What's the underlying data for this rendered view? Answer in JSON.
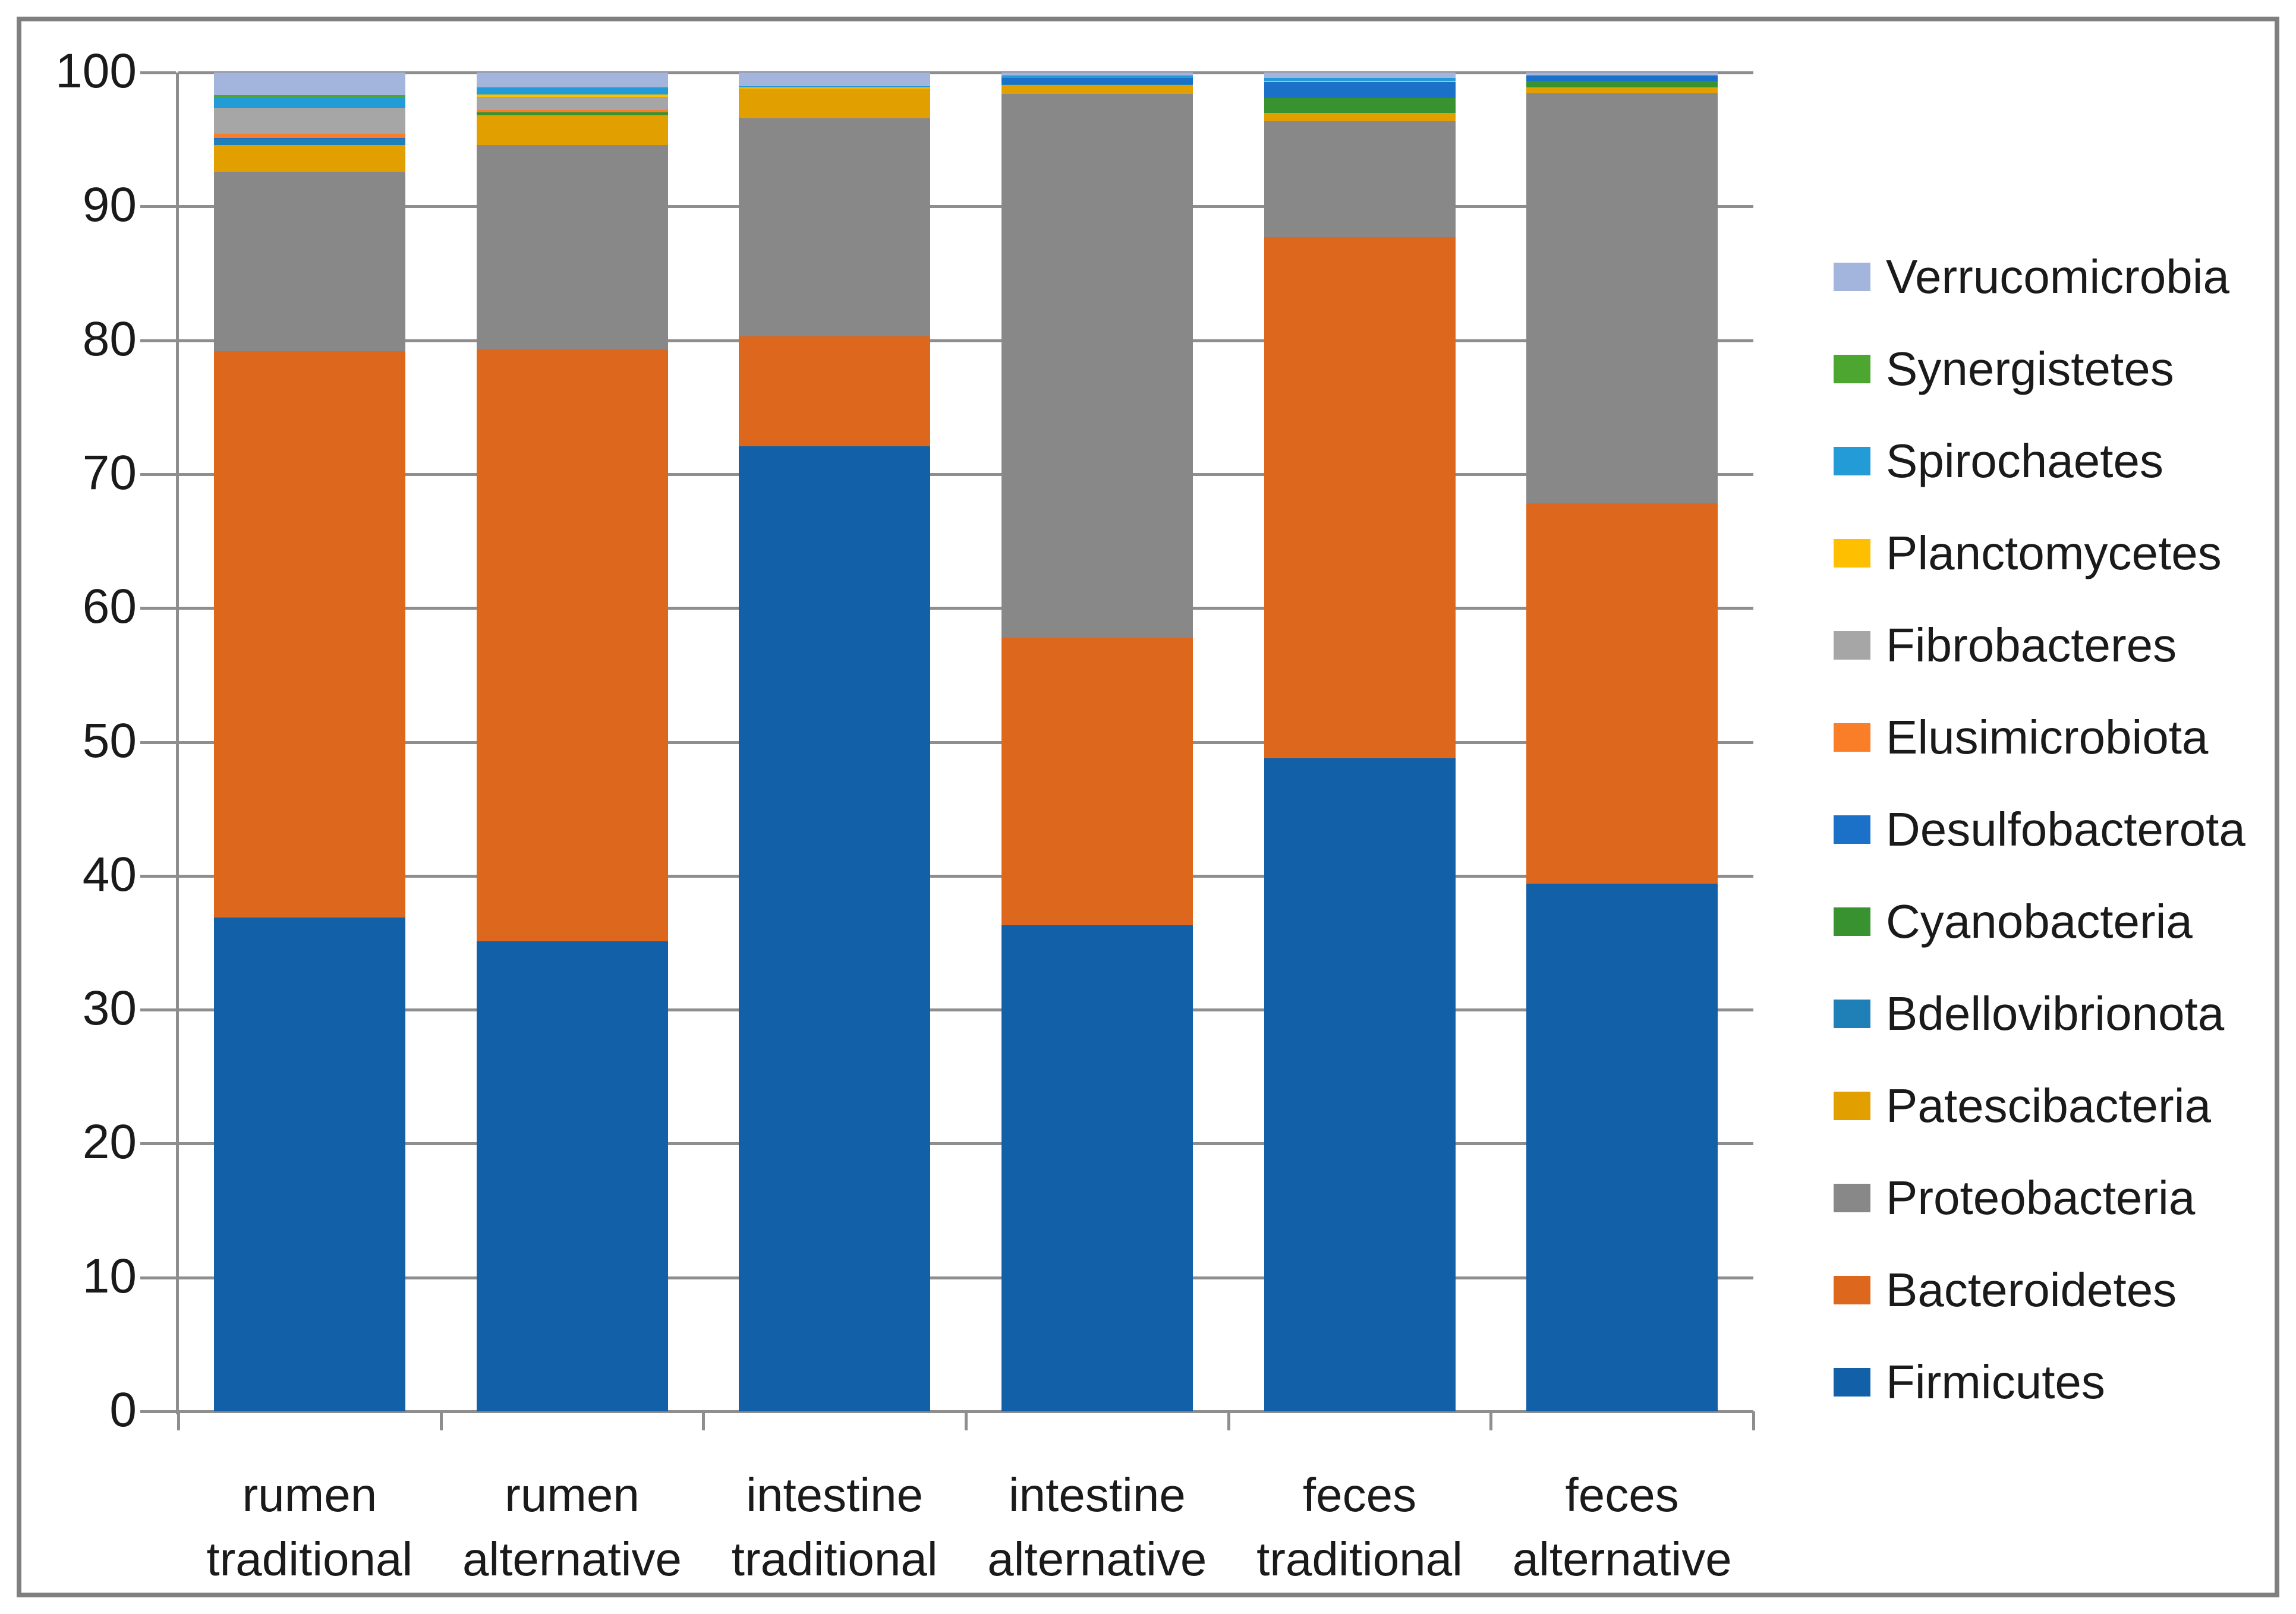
{
  "figure": {
    "background_color": "#FFFFFF",
    "border_color": "#7F7F7F",
    "grid_color": "#8E8E8E",
    "text_color": "#1A1A1A"
  },
  "chart_data": {
    "type": "bar",
    "stacked": true,
    "title": "",
    "xlabel": "",
    "ylabel": "",
    "ylim": [
      0,
      100
    ],
    "grid": true,
    "legend_position": "right",
    "yticks": [
      "0",
      "10",
      "20",
      "30",
      "40",
      "50",
      "60",
      "70",
      "80",
      "90",
      "100"
    ],
    "categories": [
      {
        "line1": "rumen",
        "line2": "traditional"
      },
      {
        "line1": "rumen",
        "line2": "alternative"
      },
      {
        "line1": "intestine",
        "line2": "traditional"
      },
      {
        "line1": "intestine",
        "line2": "alternative"
      },
      {
        "line1": "feces",
        "line2": "traditional"
      },
      {
        "line1": "feces",
        "line2": "alternative"
      }
    ],
    "stack_order_note": "series listed bottom-to-top; legend displays reverse order",
    "series": [
      {
        "name": "Firmicutes",
        "color": "#1160A8",
        "values": [
          36.9,
          35.1,
          72.1,
          36.3,
          48.8,
          39.4
        ]
      },
      {
        "name": "Bacteroidetes",
        "color": "#DC671D",
        "values": [
          42.3,
          44.2,
          8.2,
          21.5,
          38.9,
          28.4
        ]
      },
      {
        "name": "Proteobacteria",
        "color": "#888888",
        "values": [
          13.4,
          15.3,
          16.3,
          40.6,
          8.65,
          30.65
        ]
      },
      {
        "name": "Patescibacteria",
        "color": "#E2A000",
        "values": [
          2.0,
          2.2,
          2.2,
          0.65,
          0.65,
          0.45
        ]
      },
      {
        "name": "Bdellovibrionota",
        "color": "#1F80B8",
        "values": [
          0.45,
          0,
          0,
          0.1,
          0,
          0
        ]
      },
      {
        "name": "Cyanobacteria",
        "color": "#37922F",
        "values": [
          0,
          0.25,
          0,
          0,
          1.1,
          0.5
        ]
      },
      {
        "name": "Desulfobacterota",
        "color": "#1B71C8",
        "values": [
          0.05,
          0,
          0,
          0.45,
          1.2,
          0.4
        ]
      },
      {
        "name": "Elusimicrobiota",
        "color": "#F97E27",
        "values": [
          0.35,
          0.15,
          0,
          0,
          0,
          0
        ]
      },
      {
        "name": "Fibrobacteres",
        "color": "#A6A6A6",
        "values": [
          1.9,
          1.0,
          0,
          0,
          0,
          0
        ]
      },
      {
        "name": "Planctomycetes",
        "color": "#FEBF00",
        "values": [
          0,
          0.15,
          0.1,
          0,
          0.1,
          0
        ]
      },
      {
        "name": "Spirochaetes",
        "color": "#229BD7",
        "values": [
          0.8,
          0.5,
          0.1,
          0.2,
          0.2,
          0
        ]
      },
      {
        "name": "Synergistetes",
        "color": "#4CA62F",
        "values": [
          0.15,
          0.05,
          0,
          0,
          0,
          0
        ]
      },
      {
        "name": "Verrucomicrobia",
        "color": "#A3B4DD",
        "values": [
          1.7,
          1.1,
          1.0,
          0.2,
          0.4,
          0.2
        ]
      }
    ]
  }
}
